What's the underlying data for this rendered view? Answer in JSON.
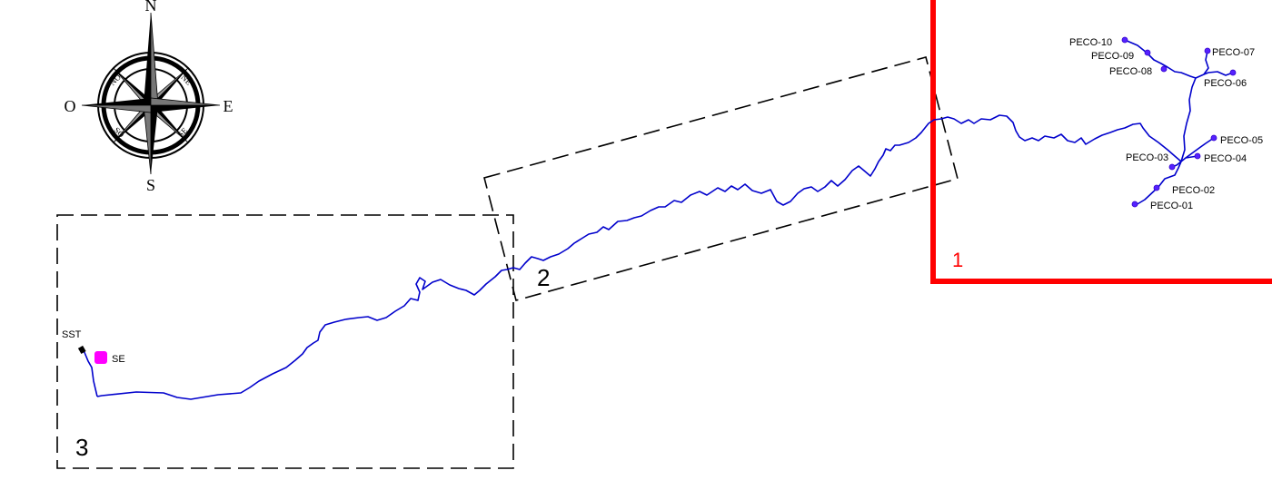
{
  "compass": {
    "north": "N",
    "south": "S",
    "east": "E",
    "west": "O",
    "ne": "NE",
    "nw": "NO",
    "se": "SE",
    "sw": "SO"
  },
  "zones": {
    "zone1": "1",
    "zone2": "2",
    "zone3": "3"
  },
  "stations": [
    "PECO-01",
    "PECO-02",
    "PECO-03",
    "PECO-04",
    "PECO-05",
    "PECO-06",
    "PECO-07",
    "PECO-08",
    "PECO-09",
    "PECO-10"
  ],
  "substation": {
    "sst_label": "SST",
    "se_label": "SE"
  },
  "colors": {
    "line": "#0000cc",
    "station": "#5522ff",
    "zone1_border": "#ff0000",
    "substation": "#ff00ff"
  }
}
